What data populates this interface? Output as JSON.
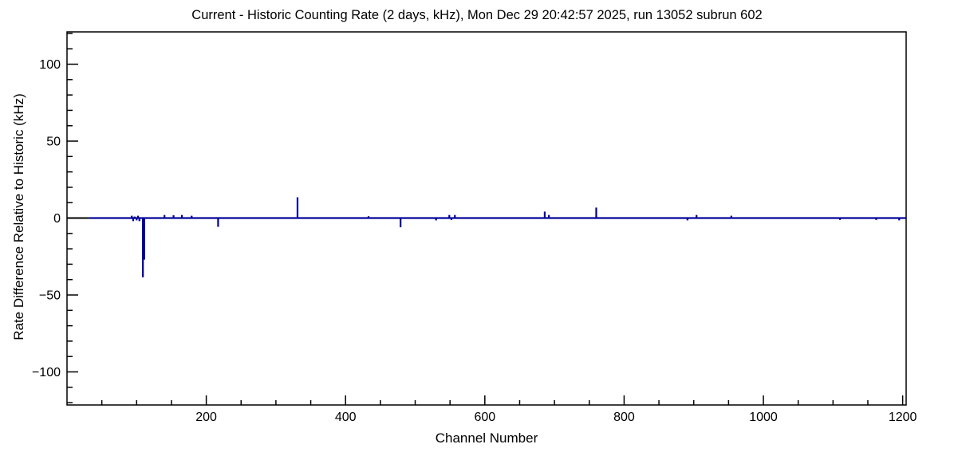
{
  "chart_data": {
    "type": "bar",
    "title": "Current - Historic Counting Rate (2 days, kHz), Mon Dec 29 20:42:57 2025, run 13052 subrun 602",
    "xlabel": "Channel Number",
    "ylabel": "Rate Difference Relative to Historic (kHz)",
    "xlim": [
      0,
      1205
    ],
    "ylim": [
      -121.5,
      121
    ],
    "x_major_ticks": [
      200,
      400,
      600,
      800,
      1000,
      1200
    ],
    "x_tick_labels": [
      "200",
      "400",
      "600",
      "800",
      "1000",
      "1200"
    ],
    "x_minor_step": 50,
    "y_major_ticks": [
      -100,
      -50,
      0,
      50,
      100
    ],
    "y_tick_labels": [
      "−100",
      "−50",
      "0",
      "50",
      "100"
    ],
    "y_minor_step": 10,
    "grid": false,
    "legend": null,
    "line_color": "#000099",
    "axis_color": "#000000",
    "baseline_value": 0,
    "baseline_black_segment": [
      0,
      32
    ],
    "spikes": [
      {
        "channel": 93,
        "value": 1.5
      },
      {
        "channel": 95,
        "value": -2
      },
      {
        "channel": 97,
        "value": 1
      },
      {
        "channel": 100,
        "value": -1.5
      },
      {
        "channel": 102,
        "value": 1.5
      },
      {
        "channel": 104,
        "value": -2
      },
      {
        "channel": 109,
        "value": -38.5
      },
      {
        "channel": 111,
        "value": -27
      },
      {
        "channel": 140,
        "value": 2
      },
      {
        "channel": 153,
        "value": 1.8
      },
      {
        "channel": 165,
        "value": 2
      },
      {
        "channel": 179,
        "value": 1.5
      },
      {
        "channel": 217,
        "value": -5.7
      },
      {
        "channel": 331,
        "value": 13.5
      },
      {
        "channel": 433,
        "value": 1.2
      },
      {
        "channel": 479,
        "value": -6
      },
      {
        "channel": 530,
        "value": -1.5
      },
      {
        "channel": 549,
        "value": 2
      },
      {
        "channel": 552,
        "value": -1.2
      },
      {
        "channel": 557,
        "value": 2
      },
      {
        "channel": 686,
        "value": 4.2
      },
      {
        "channel": 692,
        "value": 2
      },
      {
        "channel": 760,
        "value": 6.8
      },
      {
        "channel": 891,
        "value": -1.5
      },
      {
        "channel": 904,
        "value": 2
      },
      {
        "channel": 954,
        "value": 1.5
      },
      {
        "channel": 1110,
        "value": -1.2
      },
      {
        "channel": 1162,
        "value": -1.2
      },
      {
        "channel": 1195,
        "value": -1.5
      }
    ]
  }
}
